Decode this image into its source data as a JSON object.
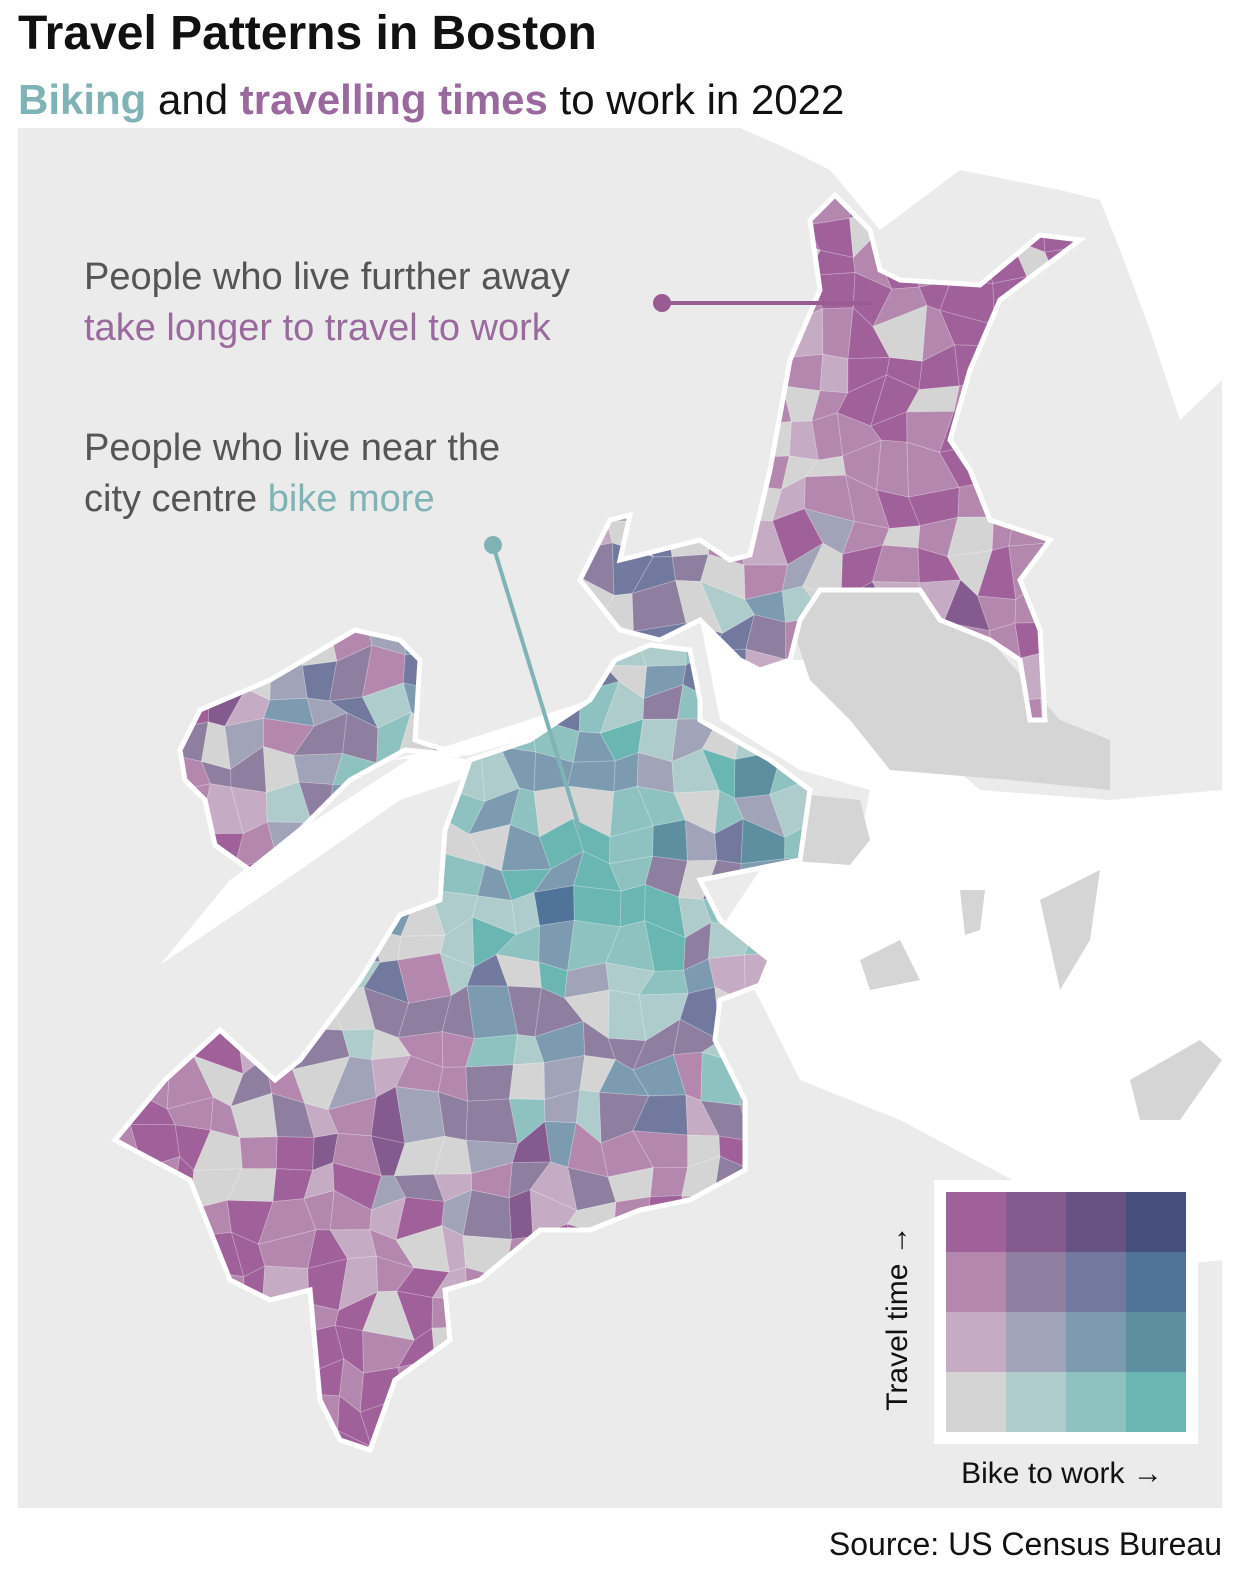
{
  "header": {
    "title": "Travel Patterns in Boston",
    "subtitle": [
      {
        "text": "Biking",
        "color": "#7fb3b5"
      },
      {
        "text": "and"
      },
      {
        "text": "travelling times",
        "color": "#9a6a9e"
      },
      {
        "text": "to work in 2022"
      }
    ]
  },
  "annotations": [
    {
      "lines": [
        [
          {
            "text": "People who live further away"
          }
        ],
        [
          {
            "text": "take longer to travel to work",
            "color": "#9a6a9e"
          }
        ]
      ],
      "pointer_color": "#9a5a92"
    },
    {
      "lines": [
        [
          {
            "text": "People who live near the"
          }
        ],
        [
          {
            "text": "city centre"
          },
          {
            "text": "bike more",
            "color": "#7fb3b5"
          }
        ]
      ],
      "pointer_color": "#7fb3b5"
    }
  ],
  "legend": {
    "colors": [
      [
        "#a0609a",
        "#845a8f",
        "#685284",
        "#464e7e"
      ],
      [
        "#b488ae",
        "#8e7ea0",
        "#717a9e",
        "#50739a"
      ],
      [
        "#c6abc4",
        "#a1a3b8",
        "#7d9bb0",
        "#5e8fa1"
      ],
      [
        "#d4d4d4",
        "#adcccb",
        "#8ec2c0",
        "#6ab6b2"
      ]
    ],
    "x_label": "Bike to work →",
    "y_label": "Travel time →"
  },
  "source": "Source: US Census Bureau"
}
